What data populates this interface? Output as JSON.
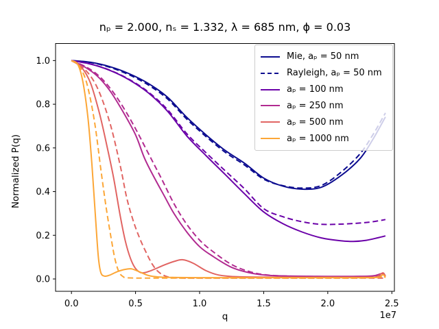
{
  "figure_title": "nₚ = 2.000, nₛ = 1.332, λ = 685 nm, ϕ = 0.03",
  "axis": {
    "xlabel": "q",
    "ylabel": "Normalized P(q)",
    "x_offset_label": "1e7",
    "xticks": [
      {
        "label": "0.0",
        "value": 0
      },
      {
        "label": "0.5",
        "value": 0.5
      },
      {
        "label": "1.0",
        "value": 1.0
      },
      {
        "label": "1.5",
        "value": 1.5
      },
      {
        "label": "2.0",
        "value": 2.0
      },
      {
        "label": "2.5",
        "value": 2.5
      }
    ],
    "yticks": [
      {
        "label": "0.0",
        "value": 0
      },
      {
        "label": "0.2",
        "value": 0.2
      },
      {
        "label": "0.4",
        "value": 0.4
      },
      {
        "label": "0.6",
        "value": 0.6
      },
      {
        "label": "0.8",
        "value": 0.8
      },
      {
        "label": "1.0",
        "value": 1.0
      }
    ]
  },
  "legend": {
    "entries": [
      {
        "label": "Mie, aₚ = 50 nm",
        "color": "#0B0B8F",
        "style": "solid"
      },
      {
        "label": "Rayleigh, aₚ = 50 nm",
        "color": "#0B0B8F",
        "style": "dashed"
      },
      {
        "label": "aₚ = 100 nm",
        "color": "#6A00A8",
        "style": "solid"
      },
      {
        "label": "aₚ = 250 nm",
        "color": "#B12A90",
        "style": "solid"
      },
      {
        "label": "aₚ = 500 nm",
        "color": "#E16462",
        "style": "solid"
      },
      {
        "label": "aₚ = 1000 nm",
        "color": "#FCA636",
        "style": "solid"
      }
    ]
  },
  "chart_data": {
    "type": "line",
    "title": "nₚ = 2.000, nₛ = 1.332, λ = 685 nm, ϕ = 0.03",
    "xlabel": "q",
    "ylabel": "Normalized P(q)",
    "x_offset": "1e7",
    "x_units": "q values are in units of 1e7",
    "xlim": [
      -0.124,
      2.52
    ],
    "ylim": [
      -0.0565,
      1.078
    ],
    "grid": false,
    "legend_position": "upper right",
    "series": [
      {
        "id": "mie-50nm",
        "label": "Mie, aₚ = 50 nm",
        "color": "#0B0B8F",
        "style": "solid",
        "points": [
          [
            0,
            1.0
          ],
          [
            0.15,
            0.992
          ],
          [
            0.3,
            0.972
          ],
          [
            0.45,
            0.94
          ],
          [
            0.6,
            0.895
          ],
          [
            0.75,
            0.832
          ],
          [
            0.9,
            0.74
          ],
          [
            1.05,
            0.66
          ],
          [
            1.2,
            0.588
          ],
          [
            1.35,
            0.53
          ],
          [
            1.5,
            0.462
          ],
          [
            1.65,
            0.425
          ],
          [
            1.8,
            0.411
          ],
          [
            1.95,
            0.42
          ],
          [
            2.1,
            0.472
          ],
          [
            2.25,
            0.55
          ],
          [
            2.35,
            0.637
          ],
          [
            2.45,
            0.742
          ]
        ]
      },
      {
        "id": "rayleigh-50nm",
        "label": "Rayleigh, aₚ = 50 nm",
        "color": "#0B0B8F",
        "style": "dashed",
        "points": [
          [
            0,
            1.0
          ],
          [
            0.15,
            0.991
          ],
          [
            0.3,
            0.969
          ],
          [
            0.45,
            0.935
          ],
          [
            0.6,
            0.888
          ],
          [
            0.75,
            0.824
          ],
          [
            0.9,
            0.732
          ],
          [
            1.05,
            0.652
          ],
          [
            1.2,
            0.58
          ],
          [
            1.35,
            0.522
          ],
          [
            1.5,
            0.457
          ],
          [
            1.65,
            0.427
          ],
          [
            1.8,
            0.416
          ],
          [
            1.95,
            0.428
          ],
          [
            2.1,
            0.487
          ],
          [
            2.25,
            0.572
          ],
          [
            2.35,
            0.658
          ],
          [
            2.45,
            0.76
          ]
        ]
      },
      {
        "id": "ap100-solid",
        "label": "aₚ = 100 nm",
        "color": "#6A00A8",
        "style": "solid",
        "points": [
          [
            0,
            1.0
          ],
          [
            0.15,
            0.984
          ],
          [
            0.3,
            0.955
          ],
          [
            0.45,
            0.912
          ],
          [
            0.6,
            0.852
          ],
          [
            0.75,
            0.768
          ],
          [
            0.9,
            0.655
          ],
          [
            1.05,
            0.565
          ],
          [
            1.2,
            0.478
          ],
          [
            1.35,
            0.39
          ],
          [
            1.5,
            0.307
          ],
          [
            1.65,
            0.253
          ],
          [
            1.8,
            0.215
          ],
          [
            1.95,
            0.188
          ],
          [
            2.1,
            0.175
          ],
          [
            2.2,
            0.172
          ],
          [
            2.3,
            0.177
          ],
          [
            2.4,
            0.19
          ],
          [
            2.45,
            0.197
          ]
        ]
      },
      {
        "id": "ap100-dashed",
        "label": "",
        "color": "#6A00A8",
        "style": "dashed",
        "points": [
          [
            0,
            1.0
          ],
          [
            0.15,
            0.984
          ],
          [
            0.3,
            0.956
          ],
          [
            0.45,
            0.914
          ],
          [
            0.6,
            0.856
          ],
          [
            0.75,
            0.775
          ],
          [
            0.9,
            0.665
          ],
          [
            1.05,
            0.578
          ],
          [
            1.2,
            0.495
          ],
          [
            1.35,
            0.413
          ],
          [
            1.5,
            0.322
          ],
          [
            1.65,
            0.285
          ],
          [
            1.8,
            0.262
          ],
          [
            1.95,
            0.25
          ],
          [
            2.1,
            0.251
          ],
          [
            2.25,
            0.256
          ],
          [
            2.35,
            0.262
          ],
          [
            2.45,
            0.272
          ]
        ]
      },
      {
        "id": "ap250-solid",
        "label": "aₚ = 250 nm",
        "color": "#B12A90",
        "style": "solid",
        "points": [
          [
            0,
            1.0
          ],
          [
            0.1,
            0.972
          ],
          [
            0.2,
            0.93
          ],
          [
            0.3,
            0.862
          ],
          [
            0.4,
            0.768
          ],
          [
            0.5,
            0.66
          ],
          [
            0.57,
            0.553
          ],
          [
            0.65,
            0.46
          ],
          [
            0.72,
            0.385
          ],
          [
            0.8,
            0.3
          ],
          [
            0.9,
            0.215
          ],
          [
            1.0,
            0.148
          ],
          [
            1.1,
            0.105
          ],
          [
            1.25,
            0.053
          ],
          [
            1.4,
            0.027
          ],
          [
            1.55,
            0.016
          ],
          [
            1.75,
            0.013
          ],
          [
            2.0,
            0.012
          ],
          [
            2.2,
            0.012
          ],
          [
            2.35,
            0.014
          ],
          [
            2.42,
            0.024
          ],
          [
            2.45,
            0.016
          ]
        ]
      },
      {
        "id": "ap250-dashed",
        "label": "",
        "color": "#B12A90",
        "style": "dashed",
        "points": [
          [
            0,
            1.0
          ],
          [
            0.1,
            0.975
          ],
          [
            0.2,
            0.937
          ],
          [
            0.3,
            0.875
          ],
          [
            0.4,
            0.79
          ],
          [
            0.5,
            0.688
          ],
          [
            0.6,
            0.575
          ],
          [
            0.7,
            0.462
          ],
          [
            0.8,
            0.345
          ],
          [
            0.9,
            0.25
          ],
          [
            1.0,
            0.178
          ],
          [
            1.1,
            0.127
          ],
          [
            1.25,
            0.066
          ],
          [
            1.4,
            0.032
          ],
          [
            1.55,
            0.017
          ],
          [
            1.8,
            0.012
          ],
          [
            2.1,
            0.011
          ],
          [
            2.35,
            0.012
          ],
          [
            2.45,
            0.016
          ]
        ]
      },
      {
        "id": "ap500-solid",
        "label": "aₚ = 500 nm",
        "color": "#E16462",
        "style": "solid",
        "points": [
          [
            0,
            1.0
          ],
          [
            0.08,
            0.968
          ],
          [
            0.15,
            0.895
          ],
          [
            0.22,
            0.755
          ],
          [
            0.28,
            0.6
          ],
          [
            0.33,
            0.46
          ],
          [
            0.38,
            0.29
          ],
          [
            0.42,
            0.175
          ],
          [
            0.46,
            0.095
          ],
          [
            0.5,
            0.048
          ],
          [
            0.55,
            0.028
          ],
          [
            0.62,
            0.038
          ],
          [
            0.72,
            0.063
          ],
          [
            0.8,
            0.08
          ],
          [
            0.87,
            0.088
          ],
          [
            0.95,
            0.072
          ],
          [
            1.05,
            0.038
          ],
          [
            1.15,
            0.018
          ],
          [
            1.3,
            0.01
          ],
          [
            1.6,
            0.008
          ],
          [
            2.0,
            0.008
          ],
          [
            2.3,
            0.008
          ],
          [
            2.38,
            0.01
          ],
          [
            2.43,
            0.028
          ],
          [
            2.45,
            0.012
          ]
        ]
      },
      {
        "id": "ap500-dashed",
        "label": "",
        "color": "#E16462",
        "style": "dashed",
        "points": [
          [
            0,
            1.0
          ],
          [
            0.1,
            0.962
          ],
          [
            0.2,
            0.878
          ],
          [
            0.3,
            0.715
          ],
          [
            0.38,
            0.52
          ],
          [
            0.43,
            0.375
          ],
          [
            0.48,
            0.27
          ],
          [
            0.53,
            0.19
          ],
          [
            0.58,
            0.125
          ],
          [
            0.63,
            0.068
          ],
          [
            0.68,
            0.032
          ],
          [
            0.74,
            0.012
          ],
          [
            0.82,
            0.005
          ],
          [
            1.0,
            0.004
          ],
          [
            1.5,
            0.004
          ],
          [
            2.0,
            0.004
          ],
          [
            2.45,
            0.004
          ]
        ]
      },
      {
        "id": "ap1000-solid",
        "label": "aₚ = 1000 nm",
        "color": "#FCA636",
        "style": "solid",
        "points": [
          [
            0,
            1.0
          ],
          [
            0.05,
            0.982
          ],
          [
            0.09,
            0.9
          ],
          [
            0.13,
            0.73
          ],
          [
            0.16,
            0.52
          ],
          [
            0.19,
            0.26
          ],
          [
            0.21,
            0.1
          ],
          [
            0.23,
            0.028
          ],
          [
            0.26,
            0.013
          ],
          [
            0.3,
            0.018
          ],
          [
            0.36,
            0.034
          ],
          [
            0.42,
            0.044
          ],
          [
            0.47,
            0.046
          ],
          [
            0.53,
            0.033
          ],
          [
            0.6,
            0.016
          ],
          [
            0.68,
            0.009
          ],
          [
            0.8,
            0.007
          ],
          [
            1.0,
            0.006
          ],
          [
            1.5,
            0.006
          ],
          [
            2.0,
            0.006
          ],
          [
            2.3,
            0.006
          ],
          [
            2.4,
            0.008
          ],
          [
            2.43,
            0.02
          ],
          [
            2.45,
            0.008
          ]
        ]
      },
      {
        "id": "ap1000-dashed",
        "label": "",
        "color": "#FCA636",
        "style": "dashed",
        "points": [
          [
            0,
            1.0
          ],
          [
            0.06,
            0.975
          ],
          [
            0.12,
            0.895
          ],
          [
            0.18,
            0.72
          ],
          [
            0.23,
            0.5
          ],
          [
            0.27,
            0.33
          ],
          [
            0.31,
            0.185
          ],
          [
            0.34,
            0.09
          ],
          [
            0.37,
            0.033
          ],
          [
            0.4,
            0.012
          ],
          [
            0.44,
            0.005
          ],
          [
            0.6,
            0.004
          ],
          [
            1.0,
            0.004
          ],
          [
            1.6,
            0.004
          ],
          [
            2.2,
            0.004
          ],
          [
            2.4,
            0.008
          ],
          [
            2.43,
            0.014
          ],
          [
            2.45,
            0.006
          ]
        ]
      }
    ]
  }
}
